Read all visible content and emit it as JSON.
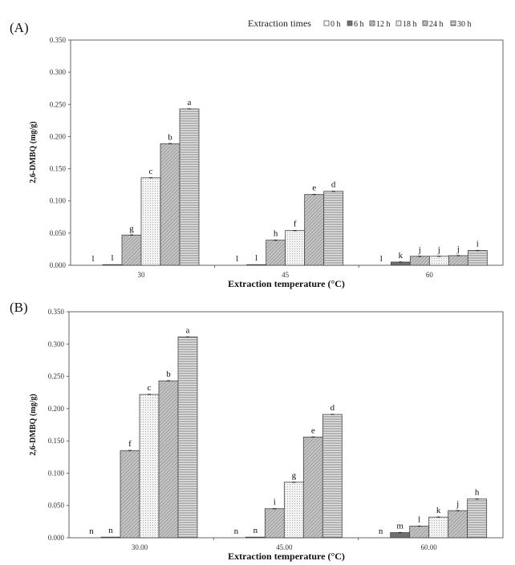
{
  "legend": {
    "title": "Extraction times",
    "items": [
      "0 h",
      "6 h",
      "12 h",
      "18 h",
      "24 h",
      "30 h"
    ]
  },
  "colors": {
    "axis": "#555555",
    "bar_stroke": "#444444",
    "dark": "#6b6b6b",
    "hatch": "#9a9a9a",
    "dots": "#bdbdbd",
    "stripes": "#8a8a8a"
  },
  "chart_data": [
    {
      "type": "bar",
      "panel_label": "(A)",
      "xlabel": "Extraction temperature (°C)",
      "ylabel": "2,6-DMBQ (mg/g)",
      "ylim": [
        0,
        0.35
      ],
      "yticks": [
        "0.000",
        "0.050",
        "0.100",
        "0.150",
        "0.200",
        "0.250",
        "0.300",
        "0.350"
      ],
      "categories": [
        "30",
        "45",
        "60"
      ],
      "series": [
        {
          "name": "0 h",
          "values": [
            0.0,
            0.0,
            0.0
          ],
          "letters": [
            "l",
            "l",
            "l"
          ]
        },
        {
          "name": "6 h",
          "values": [
            0.001,
            0.001,
            0.005
          ],
          "letters": [
            "l",
            "l",
            "k"
          ]
        },
        {
          "name": "12 h",
          "values": [
            0.047,
            0.039,
            0.014
          ],
          "letters": [
            "g",
            "h",
            "j"
          ]
        },
        {
          "name": "18 h",
          "values": [
            0.136,
            0.054,
            0.014
          ],
          "letters": [
            "c",
            "f",
            "j"
          ]
        },
        {
          "name": "24 h",
          "values": [
            0.189,
            0.11,
            0.015
          ],
          "letters": [
            "b",
            "e",
            "j"
          ]
        },
        {
          "name": "30 h",
          "values": [
            0.243,
            0.115,
            0.023
          ],
          "letters": [
            "a",
            "d",
            "i"
          ]
        }
      ]
    },
    {
      "type": "bar",
      "panel_label": "(B)",
      "xlabel": "Extraction temperature (°C)",
      "ylabel": "2,6-DMBQ (mg/g)",
      "ylim": [
        0,
        0.35
      ],
      "yticks": [
        "0.000",
        "0.050",
        "0.100",
        "0.150",
        "0.200",
        "0.250",
        "0.300",
        "0.350"
      ],
      "categories": [
        "30.00",
        "45.00",
        "60.00"
      ],
      "series": [
        {
          "name": "0 h",
          "values": [
            0.0,
            0.0,
            0.0
          ],
          "letters": [
            "n",
            "n",
            "n"
          ]
        },
        {
          "name": "6 h",
          "values": [
            0.001,
            0.001,
            0.008
          ],
          "letters": [
            "n",
            "n",
            "m"
          ]
        },
        {
          "name": "12 h",
          "values": [
            0.135,
            0.045,
            0.018
          ],
          "letters": [
            "f",
            "i",
            "l"
          ]
        },
        {
          "name": "18 h",
          "values": [
            0.222,
            0.086,
            0.032
          ],
          "letters": [
            "c",
            "g",
            "k"
          ]
        },
        {
          "name": "24 h",
          "values": [
            0.243,
            0.156,
            0.042
          ],
          "letters": [
            "b",
            "e",
            "j"
          ]
        },
        {
          "name": "30 h",
          "values": [
            0.311,
            0.191,
            0.06
          ],
          "letters": [
            "a",
            "d",
            "h"
          ]
        }
      ]
    }
  ]
}
